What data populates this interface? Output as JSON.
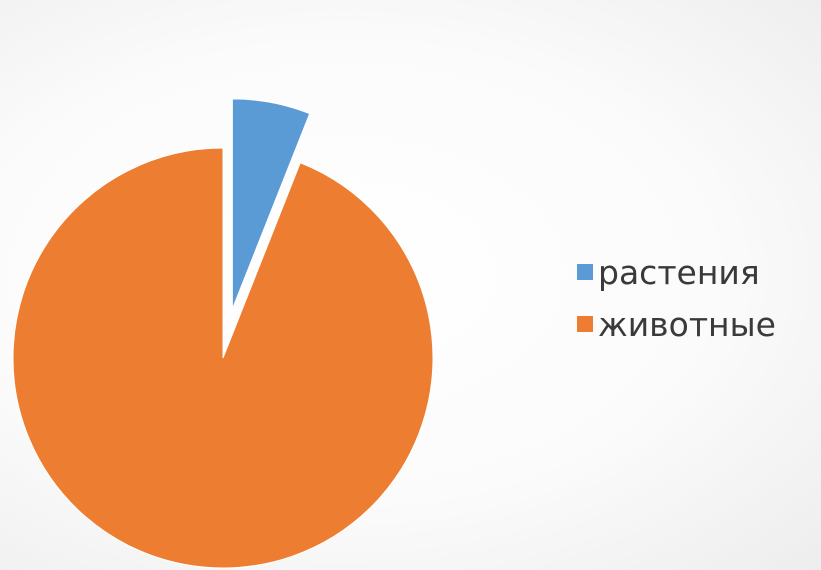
{
  "chart_data": {
    "type": "pie",
    "title": "",
    "categories": [
      "растения",
      "животные"
    ],
    "values": [
      6,
      94
    ],
    "colors": [
      "#5B9BD5",
      "#ED7D31"
    ],
    "exploded": [
      true,
      false
    ],
    "legend_position": "right"
  }
}
